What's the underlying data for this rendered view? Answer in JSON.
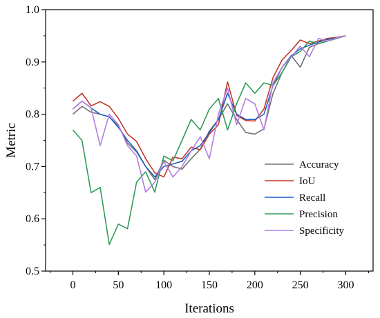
{
  "chart_data": {
    "type": "line",
    "title": "",
    "xlabel": "Iterations",
    "ylabel": "Metric",
    "xlim": [
      -30,
      330
    ],
    "ylim": [
      0.5,
      1.0
    ],
    "xticks": [
      0,
      50,
      100,
      150,
      200,
      250,
      300
    ],
    "xtick_labels": [
      "0",
      "50",
      "100",
      "150",
      "200",
      "250",
      "300"
    ],
    "yticks": [
      0.5,
      0.6,
      0.7,
      0.8,
      0.9,
      1.0
    ],
    "ytick_labels": [
      "0.5",
      "0.6",
      "0.7",
      "0.8",
      "0.9",
      "1.0"
    ],
    "grid": false,
    "legend_position": "bottom-right",
    "x": [
      0,
      10,
      20,
      30,
      40,
      50,
      60,
      70,
      80,
      90,
      100,
      110,
      120,
      130,
      140,
      150,
      160,
      170,
      180,
      190,
      200,
      210,
      220,
      230,
      240,
      250,
      260,
      270,
      280,
      290,
      300
    ],
    "series": [
      {
        "name": "Accuracy",
        "color": "#707070",
        "values": [
          0.8,
          0.815,
          0.804,
          0.8,
          0.795,
          0.778,
          0.745,
          0.728,
          0.7,
          0.675,
          0.712,
          0.7,
          0.695,
          0.715,
          0.733,
          0.768,
          0.79,
          0.82,
          0.79,
          0.765,
          0.762,
          0.772,
          0.84,
          0.88,
          0.912,
          0.89,
          0.928,
          0.935,
          0.94,
          0.945,
          0.95
        ]
      },
      {
        "name": "IoU",
        "color": "#c0392b",
        "values": [
          0.825,
          0.84,
          0.816,
          0.824,
          0.815,
          0.792,
          0.762,
          0.748,
          0.715,
          0.688,
          0.68,
          0.718,
          0.715,
          0.737,
          0.732,
          0.762,
          0.78,
          0.862,
          0.798,
          0.788,
          0.787,
          0.81,
          0.87,
          0.904,
          0.922,
          0.942,
          0.935,
          0.94,
          0.945,
          0.947,
          0.95
        ]
      },
      {
        "name": "Recall",
        "color": "#1f5fbf",
        "values": [
          0.81,
          0.825,
          0.812,
          0.8,
          0.795,
          0.775,
          0.75,
          0.73,
          0.7,
          0.68,
          0.7,
          0.705,
          0.71,
          0.73,
          0.74,
          0.765,
          0.79,
          0.84,
          0.8,
          0.79,
          0.79,
          0.8,
          0.855,
          0.89,
          0.912,
          0.925,
          0.932,
          0.938,
          0.943,
          0.946,
          0.95
        ]
      },
      {
        "name": "Precision",
        "color": "#2e9b57",
        "values": [
          0.77,
          0.75,
          0.65,
          0.66,
          0.551,
          0.59,
          0.581,
          0.67,
          0.69,
          0.651,
          0.72,
          0.711,
          0.75,
          0.79,
          0.77,
          0.81,
          0.83,
          0.77,
          0.82,
          0.86,
          0.84,
          0.86,
          0.855,
          0.88,
          0.91,
          0.92,
          0.94,
          0.935,
          0.94,
          0.945,
          0.95
        ]
      },
      {
        "name": "Specificity",
        "color": "#b27ce0",
        "values": [
          0.81,
          0.825,
          0.812,
          0.74,
          0.8,
          0.78,
          0.74,
          0.72,
          0.651,
          0.67,
          0.71,
          0.68,
          0.7,
          0.73,
          0.757,
          0.715,
          0.8,
          0.85,
          0.78,
          0.83,
          0.82,
          0.77,
          0.86,
          0.89,
          0.91,
          0.93,
          0.91,
          0.945,
          0.94,
          0.946,
          0.95
        ]
      }
    ]
  }
}
